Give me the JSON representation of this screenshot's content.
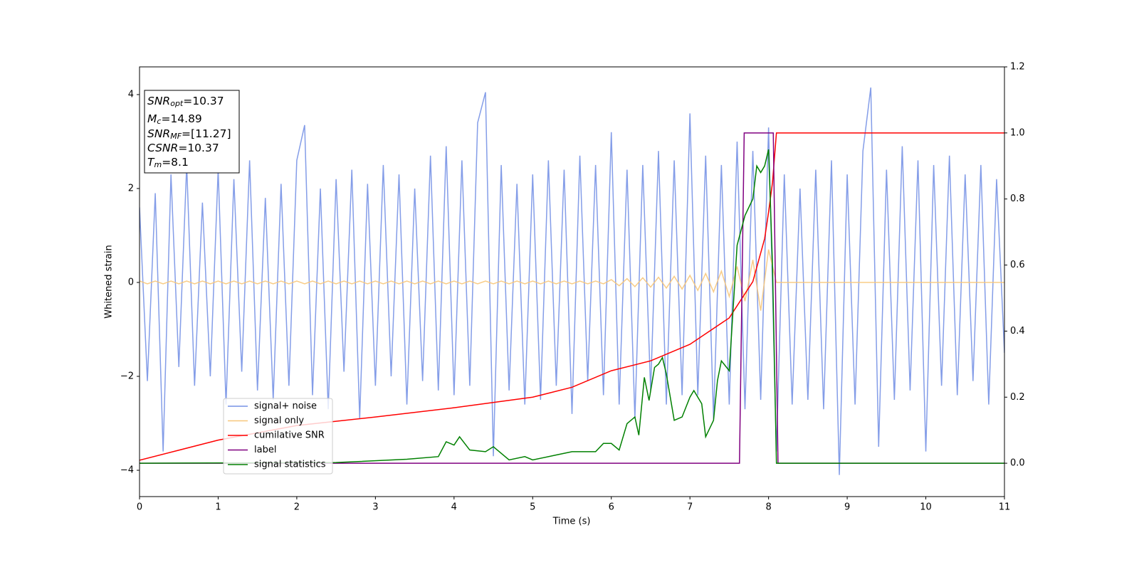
{
  "chart_data": {
    "type": "line",
    "xlabel": "Time (s)",
    "ylabel": "Whitened strain",
    "xlim": [
      0,
      11
    ],
    "xticks": [
      0,
      1,
      2,
      3,
      4,
      5,
      6,
      7,
      8,
      9,
      10,
      11
    ],
    "ylim": [
      -4.56,
      4.59
    ],
    "yticks": [
      {
        "value": -4,
        "label": "−4"
      },
      {
        "value": -2,
        "label": "−2"
      },
      0,
      2,
      4
    ],
    "y2lim": [
      -0.101,
      1.2
    ],
    "y2ticks": [
      {
        "value": 0,
        "label": "0.0"
      },
      0.2,
      0.4,
      0.6,
      0.8,
      {
        "value": 1,
        "label": "1.0"
      },
      1.2
    ],
    "annotation": [
      {
        "base": "SNR",
        "sub": "opt",
        "rest": "=10.37"
      },
      {
        "base": "M",
        "sub": "c",
        "rest": "=14.89"
      },
      {
        "base": "SNR",
        "sub": "MF",
        "rest": "=[11.27]"
      },
      {
        "base": "CSNR",
        "rest": "=10.37"
      },
      {
        "base": "T",
        "sub": "m",
        "rest": "=8.1"
      }
    ],
    "series": [
      {
        "name": "signal+ noise",
        "color": "#7792e6",
        "x": [
          0,
          0.1,
          0.2,
          0.3,
          0.4,
          0.5,
          0.6,
          0.7,
          0.8,
          0.9,
          1,
          1.1,
          1.2,
          1.3,
          1.4,
          1.5,
          1.6,
          1.7,
          1.8,
          1.9,
          2,
          2.1,
          2.2,
          2.3,
          2.4,
          2.5,
          2.6,
          2.7,
          2.8,
          2.9,
          3,
          3.1,
          3.2,
          3.3,
          3.4,
          3.5,
          3.6,
          3.7,
          3.8,
          3.9,
          4,
          4.1,
          4.2,
          4.3,
          4.4,
          4.5,
          4.6,
          4.7,
          4.8,
          4.9,
          5,
          5.1,
          5.2,
          5.3,
          5.4,
          5.5,
          5.6,
          5.7,
          5.8,
          5.9,
          6,
          6.1,
          6.2,
          6.3,
          6.4,
          6.5,
          6.6,
          6.7,
          6.8,
          6.9,
          7,
          7.1,
          7.2,
          7.3,
          7.4,
          7.5,
          7.6,
          7.7,
          7.8,
          7.9,
          8,
          8.1,
          8.2,
          8.3,
          8.4,
          8.5,
          8.6,
          8.7,
          8.8,
          8.9,
          9,
          9.1,
          9.2,
          9.3,
          9.4,
          9.5,
          9.6,
          9.7,
          9.8,
          9.9,
          10,
          10.1,
          10.2,
          10.3,
          10.4,
          10.5,
          10.6,
          10.7,
          10.8,
          10.9,
          11
        ],
        "values": [
          1.6,
          -2.1,
          1.9,
          -3.6,
          2.3,
          -1.8,
          2.5,
          -2.2,
          1.7,
          -2.0,
          2.4,
          -2.6,
          2.2,
          -1.9,
          2.6,
          -2.3,
          1.8,
          -2.5,
          2.1,
          -2.2,
          2.6,
          3.35,
          -2.4,
          2.0,
          -2.7,
          2.2,
          -1.9,
          2.4,
          -2.9,
          2.1,
          -2.2,
          2.5,
          -2.0,
          2.3,
          -2.6,
          2.0,
          -2.1,
          2.7,
          -2.3,
          2.9,
          -2.4,
          2.6,
          -2.2,
          3.4,
          4.05,
          -3.7,
          2.5,
          -2.3,
          2.1,
          -2.6,
          2.3,
          -2.5,
          2.6,
          -2.2,
          2.4,
          -2.8,
          2.7,
          -2.1,
          2.5,
          -2.4,
          3.2,
          -2.6,
          2.4,
          -2.9,
          2.5,
          -2.3,
          2.8,
          -2.6,
          2.6,
          -2.4,
          3.6,
          -2.4,
          2.7,
          -2.9,
          2.5,
          -2.6,
          3.0,
          -2.7,
          2.8,
          -2.5,
          3.3,
          -3.6,
          2.3,
          -2.6,
          2.0,
          -2.5,
          2.4,
          -2.7,
          2.6,
          -4.1,
          2.3,
          -2.6,
          2.8,
          4.15,
          -3.5,
          2.4,
          -2.5,
          2.9,
          -2.3,
          2.6,
          -3.6,
          2.5,
          -2.2,
          2.7,
          -2.4,
          2.3,
          -2.1,
          2.5,
          -2.6,
          2.2,
          -1.5
        ]
      },
      {
        "name": "signal only",
        "color": "#f7c77a",
        "x": [
          0,
          0.1,
          0.2,
          0.3,
          0.4,
          0.5,
          0.6,
          0.7,
          0.8,
          0.9,
          1,
          1.1,
          1.2,
          1.3,
          1.4,
          1.5,
          1.6,
          1.7,
          1.8,
          1.9,
          2,
          2.1,
          2.2,
          2.3,
          2.4,
          2.5,
          2.6,
          2.7,
          2.8,
          2.9,
          3,
          3.1,
          3.2,
          3.3,
          3.4,
          3.5,
          3.6,
          3.7,
          3.8,
          3.9,
          4,
          4.1,
          4.2,
          4.3,
          4.4,
          4.5,
          4.6,
          4.7,
          4.8,
          4.9,
          5,
          5.1,
          5.2,
          5.3,
          5.4,
          5.5,
          5.6,
          5.7,
          5.8,
          5.9,
          6,
          6.1,
          6.2,
          6.3,
          6.4,
          6.5,
          6.6,
          6.7,
          6.8,
          6.9,
          7,
          7.1,
          7.2,
          7.3,
          7.4,
          7.5,
          7.6,
          7.7,
          7.8,
          7.9,
          8,
          8.1,
          8.2,
          8.3,
          8.4,
          8.5,
          8.6,
          8.7,
          8.8,
          8.9,
          9,
          9.1,
          9.2,
          9.3,
          9.4,
          9.5,
          9.6,
          9.7,
          9.8,
          9.9,
          10,
          10.1,
          10.2,
          10.3,
          10.4,
          10.5,
          10.6,
          10.7,
          10.8,
          10.9,
          11
        ],
        "values": [
          0.03,
          -0.03,
          0.03,
          -0.03,
          0.03,
          -0.03,
          0.03,
          -0.03,
          0.03,
          -0.03,
          0.03,
          -0.03,
          0.03,
          -0.03,
          0.03,
          -0.03,
          0.03,
          -0.03,
          0.03,
          -0.03,
          0.03,
          -0.03,
          0.03,
          -0.03,
          0.03,
          -0.03,
          0.03,
          -0.03,
          0.03,
          -0.03,
          0.03,
          -0.03,
          0.03,
          -0.03,
          0.03,
          -0.03,
          0.03,
          -0.03,
          0.03,
          -0.03,
          0.03,
          -0.03,
          0.03,
          -0.03,
          0.03,
          -0.03,
          0.03,
          -0.03,
          0.03,
          -0.03,
          0.03,
          -0.03,
          0.03,
          -0.03,
          0.03,
          -0.03,
          0.03,
          -0.03,
          0.03,
          -0.03,
          0.06,
          -0.07,
          0.08,
          -0.09,
          0.1,
          -0.1,
          0.11,
          -0.12,
          0.13,
          -0.14,
          0.15,
          -0.17,
          0.19,
          -0.2,
          0.24,
          -0.3,
          0.34,
          -0.4,
          0.48,
          -0.6,
          0.7,
          0,
          0,
          0,
          0,
          0,
          0,
          0,
          0,
          0,
          0,
          0,
          0,
          0,
          0,
          0,
          0,
          0,
          0,
          0,
          0,
          0,
          0,
          0,
          0,
          0,
          0,
          0,
          0,
          0,
          0
        ]
      },
      {
        "name": "cumilative SNR",
        "color": "#ff0000",
        "axis": "y2",
        "x": [
          0,
          1,
          2,
          3,
          4,
          5,
          5.5,
          6,
          6.5,
          7,
          7.5,
          7.8,
          7.95,
          8.0,
          8.05,
          8.1,
          11
        ],
        "values": [
          0.009,
          0.07,
          0.114,
          0.14,
          0.168,
          0.2,
          0.23,
          0.28,
          0.31,
          0.36,
          0.44,
          0.55,
          0.68,
          0.76,
          0.85,
          1.0,
          1.0
        ]
      },
      {
        "name": "label",
        "color": "#800080",
        "axis": "y2",
        "x": [
          0,
          7.63,
          7.69,
          8.06,
          8.12,
          11
        ],
        "values": [
          0,
          0,
          1,
          1,
          0,
          0
        ]
      },
      {
        "name": "signal statistics",
        "color": "#008000",
        "axis": "y2",
        "x": [
          0,
          2.5,
          3.4,
          3.8,
          3.9,
          4.0,
          4.07,
          4.2,
          4.4,
          4.5,
          4.7,
          4.9,
          5.0,
          5.3,
          5.5,
          5.8,
          5.9,
          6.0,
          6.1,
          6.2,
          6.3,
          6.35,
          6.42,
          6.48,
          6.55,
          6.6,
          6.65,
          6.7,
          6.8,
          6.9,
          7.0,
          7.05,
          7.15,
          7.2,
          7.3,
          7.35,
          7.4,
          7.5,
          7.6,
          7.7,
          7.8,
          7.85,
          7.9,
          7.95,
          8.0,
          8.05,
          8.1,
          11
        ],
        "values": [
          0,
          0.002,
          0.012,
          0.02,
          0.065,
          0.055,
          0.08,
          0.04,
          0.035,
          0.05,
          0.01,
          0.02,
          0.01,
          0.025,
          0.035,
          0.035,
          0.06,
          0.06,
          0.04,
          0.12,
          0.14,
          0.085,
          0.26,
          0.19,
          0.29,
          0.3,
          0.32,
          0.27,
          0.13,
          0.14,
          0.2,
          0.22,
          0.18,
          0.08,
          0.13,
          0.25,
          0.31,
          0.28,
          0.66,
          0.75,
          0.8,
          0.9,
          0.88,
          0.9,
          0.95,
          0.6,
          0,
          0
        ]
      }
    ]
  }
}
